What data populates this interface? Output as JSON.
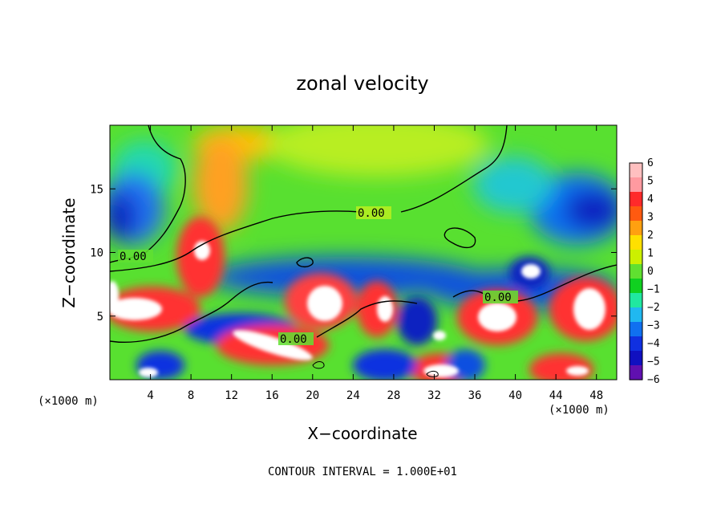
{
  "chart_data": {
    "type": "heatmap",
    "title": "zonal velocity",
    "xlabel": "X−coordinate",
    "ylabel": "Z−coordinate",
    "x_unit_left": "(×1000 m)",
    "x_unit_right": "(×1000 m)",
    "xlim": [
      0,
      50
    ],
    "ylim": [
      0,
      20
    ],
    "x_ticks": [
      4,
      8,
      12,
      16,
      20,
      24,
      28,
      32,
      36,
      40,
      44,
      48
    ],
    "y_ticks": [
      5,
      10,
      15
    ],
    "colorbar": {
      "min": -6,
      "max": 6,
      "ticks": [
        6,
        5,
        4,
        3,
        2,
        1,
        0,
        -1,
        -2,
        -3,
        -4,
        -5,
        -6
      ],
      "colors": [
        "#ffc0c0",
        "#ff9aa0",
        "#ff2a2a",
        "#ff5a10",
        "#ffa010",
        "#ffe000",
        "#ccf000",
        "#60e030",
        "#10d020",
        "#20e8a0",
        "#20b8f0",
        "#1070f0",
        "#1030e0",
        "#1010c0",
        "#6010b0"
      ]
    },
    "zero_contour_label": "0.00",
    "contour_interval_text": "CONTOUR INTERVAL = 1.000E+01"
  }
}
